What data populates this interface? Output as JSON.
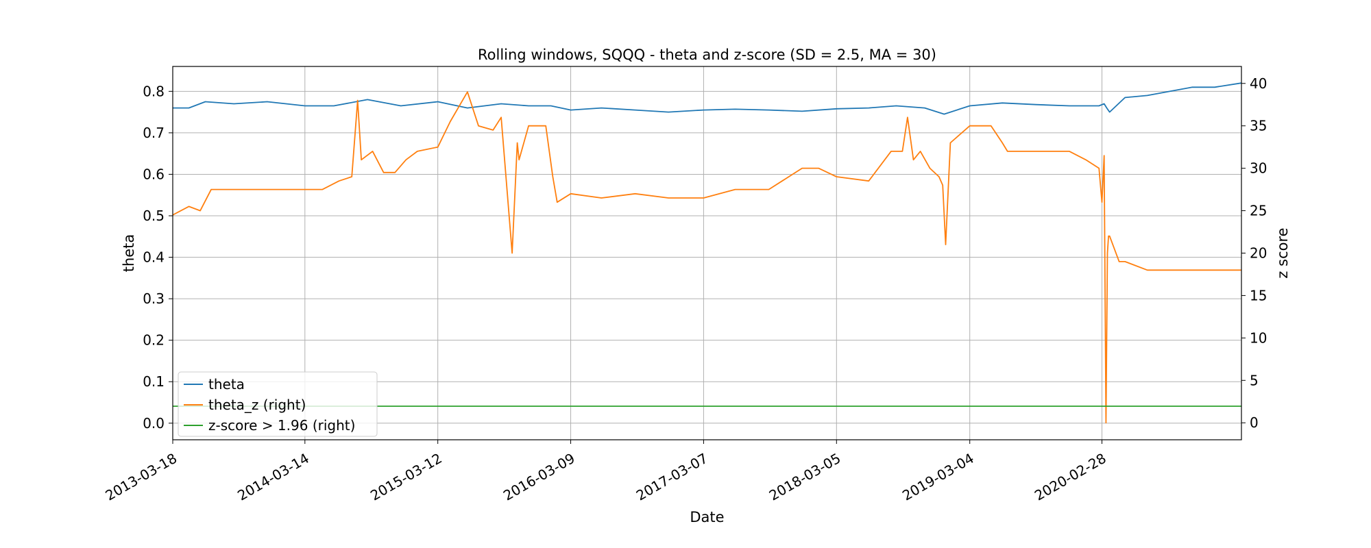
{
  "chart_data": {
    "type": "line",
    "title": "Rolling windows, SQQQ - theta and z-score (SD = 2.5, MA = 30)",
    "xlabel": "Date",
    "ylabel_left": "theta",
    "ylabel_right": "z score",
    "x_tick_labels": [
      "2013-03-18",
      "2014-03-14",
      "2015-03-12",
      "2016-03-09",
      "2017-03-07",
      "2018-03-05",
      "2019-03-04",
      "2020-02-28"
    ],
    "x_range": [
      "2013-03-18",
      "2021-03-15"
    ],
    "ylim_left": [
      -0.04,
      0.86
    ],
    "ylim_right": [
      -2,
      42
    ],
    "yticks_left": [
      0.0,
      0.1,
      0.2,
      0.3,
      0.4,
      0.5,
      0.6,
      0.7,
      0.8
    ],
    "yticks_right": [
      0,
      5,
      10,
      15,
      20,
      25,
      30,
      35,
      40
    ],
    "grid": true,
    "legend_position": "lower left",
    "legend": [
      "theta",
      "theta_z (right)",
      "z-score > 1.96 (right)"
    ],
    "series": [
      {
        "name": "theta",
        "axis": "left",
        "color": "#1f77b4",
        "x": [
          "2013-03-18",
          "2013-05-01",
          "2013-06-15",
          "2013-09-01",
          "2013-12-01",
          "2014-03-14",
          "2014-06-01",
          "2014-09-01",
          "2014-12-01",
          "2015-03-12",
          "2015-06-01",
          "2015-09-01",
          "2015-11-15",
          "2016-01-15",
          "2016-03-09",
          "2016-06-01",
          "2016-09-01",
          "2016-12-01",
          "2017-03-07",
          "2017-06-01",
          "2017-09-01",
          "2017-12-01",
          "2018-03-05",
          "2018-06-01",
          "2018-08-15",
          "2018-11-01",
          "2018-12-24",
          "2019-03-04",
          "2019-06-01",
          "2019-09-01",
          "2019-12-01",
          "2020-02-20",
          "2020-03-05",
          "2020-03-12",
          "2020-03-20",
          "2020-05-01",
          "2020-07-01",
          "2020-09-01",
          "2020-11-01",
          "2021-01-01",
          "2021-03-15"
        ],
        "y": [
          0.76,
          0.76,
          0.775,
          0.77,
          0.775,
          0.765,
          0.765,
          0.78,
          0.765,
          0.775,
          0.76,
          0.77,
          0.765,
          0.765,
          0.755,
          0.76,
          0.755,
          0.75,
          0.755,
          0.757,
          0.755,
          0.752,
          0.758,
          0.76,
          0.765,
          0.76,
          0.745,
          0.765,
          0.772,
          0.768,
          0.765,
          0.765,
          0.77,
          0.76,
          0.75,
          0.785,
          0.79,
          0.8,
          0.81,
          0.81,
          0.82
        ]
      },
      {
        "name": "theta_z (right)",
        "axis": "right",
        "color": "#ff7f0e",
        "x": [
          "2013-03-18",
          "2013-05-01",
          "2013-06-01",
          "2013-07-01",
          "2013-09-01",
          "2013-11-01",
          "2014-03-14",
          "2014-05-01",
          "2014-06-15",
          "2014-07-20",
          "2014-08-05",
          "2014-08-15",
          "2014-09-15",
          "2014-10-15",
          "2014-11-15",
          "2014-12-15",
          "2015-01-15",
          "2015-03-12",
          "2015-04-15",
          "2015-06-01",
          "2015-07-01",
          "2015-08-10",
          "2015-09-01",
          "2015-10-01",
          "2015-10-15",
          "2015-10-20",
          "2015-11-15",
          "2016-01-01",
          "2016-01-20",
          "2016-02-01",
          "2016-03-09",
          "2016-06-01",
          "2016-09-01",
          "2016-12-01",
          "2017-03-07",
          "2017-06-01",
          "2017-09-01",
          "2017-12-01",
          "2018-01-15",
          "2018-03-05",
          "2018-06-01",
          "2018-08-01",
          "2018-09-01",
          "2018-09-15",
          "2018-10-01",
          "2018-10-20",
          "2018-11-15",
          "2018-12-10",
          "2018-12-20",
          "2018-12-28",
          "2019-01-10",
          "2019-03-04",
          "2019-05-01",
          "2019-06-01",
          "2019-06-15",
          "2019-09-01",
          "2019-12-01",
          "2020-01-15",
          "2020-02-20",
          "2020-02-28",
          "2020-03-05",
          "2020-03-10",
          "2020-03-14",
          "2020-03-17",
          "2020-03-20",
          "2020-04-15",
          "2020-05-01",
          "2020-07-01",
          "2020-09-01",
          "2020-11-01",
          "2021-01-01",
          "2021-03-15"
        ],
        "y": [
          24.5,
          25.5,
          25,
          27.5,
          27.5,
          27.5,
          27.5,
          27.5,
          28.5,
          29,
          38,
          31,
          32,
          29.5,
          29.5,
          31,
          32,
          32.5,
          35.5,
          39,
          35,
          34.5,
          36,
          20,
          33,
          31,
          35,
          35,
          29,
          26,
          27,
          26.5,
          27,
          26.5,
          26.5,
          27.5,
          27.5,
          30,
          30,
          29,
          28.5,
          32,
          32,
          36,
          31,
          32,
          30,
          29,
          28,
          21,
          33,
          35,
          35,
          33,
          32,
          32,
          32,
          31,
          30,
          26,
          31.5,
          0,
          20,
          22,
          22,
          19,
          19,
          18,
          18,
          18,
          18,
          18
        ]
      },
      {
        "name": "z-score > 1.96 (right)",
        "axis": "right",
        "color": "#2ca02c",
        "x": [
          "2013-03-18",
          "2021-03-15"
        ],
        "y": [
          1.96,
          1.96
        ]
      }
    ]
  }
}
